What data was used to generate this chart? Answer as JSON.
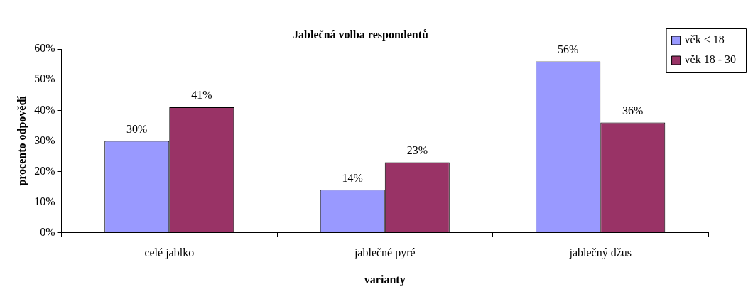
{
  "chart_data": {
    "type": "bar",
    "title": "Jablečná volba respondentů",
    "xlabel": "varianty",
    "ylabel": "procento odpovědí",
    "categories": [
      "celé jablko",
      "jablečné pyré",
      "jablečný džus"
    ],
    "series": [
      {
        "name": "věk < 18",
        "color": "#9999ff",
        "values": [
          30,
          14,
          56
        ],
        "value_labels": [
          "30%",
          "14%",
          "56%"
        ]
      },
      {
        "name": "věk 18 - 30",
        "color": "#993366",
        "values": [
          41,
          23,
          36
        ],
        "value_labels": [
          "41%",
          "23%",
          "36%"
        ]
      }
    ],
    "ylim": [
      0,
      60
    ],
    "yticks": [
      {
        "value": 0,
        "label": "0%"
      },
      {
        "value": 10,
        "label": "10%"
      },
      {
        "value": 20,
        "label": "20%"
      },
      {
        "value": 30,
        "label": "30%"
      },
      {
        "value": 40,
        "label": "40%"
      },
      {
        "value": 50,
        "label": "50%"
      },
      {
        "value": 60,
        "label": "60%"
      }
    ],
    "grid": false,
    "legend": "top right"
  }
}
